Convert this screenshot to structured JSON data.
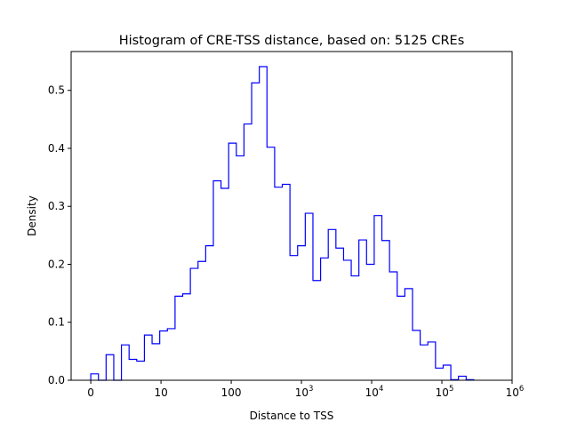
{
  "chart_data": {
    "type": "bar",
    "style": "step histogram",
    "title": "Histogram of CRE-TSS distance, based on: 5125 CREs",
    "xlabel": "Distance to TSS",
    "ylabel": "Density",
    "x_scale": "symlog (linear 0-10, log above)",
    "xlim_symlog": [
      -0.28,
      6
    ],
    "ylim": [
      0,
      0.567
    ],
    "bin_start_symlog": 0,
    "bin_width_symlog": 0.10909,
    "values": [
      0.011,
      0,
      0.044,
      0,
      0.061,
      0.036,
      0.033,
      0.078,
      0.063,
      0.085,
      0.089,
      0.145,
      0.149,
      0.193,
      0.205,
      0.232,
      0.344,
      0.331,
      0.409,
      0.387,
      0.442,
      0.513,
      0.541,
      0.402,
      0.333,
      0.338,
      0.215,
      0.232,
      0.288,
      0.172,
      0.211,
      0.26,
      0.228,
      0.207,
      0.18,
      0.242,
      0.2,
      0.284,
      0.241,
      0.187,
      0.145,
      0.158,
      0.086,
      0.061,
      0.066,
      0.021,
      0.026,
      0.001,
      0.007,
      0.001
    ],
    "color": "#0000ff",
    "x_ticks": [
      {
        "value": 0,
        "label": "0"
      },
      {
        "value": 1,
        "label": "10"
      },
      {
        "value": 2,
        "label": "100"
      },
      {
        "value": 3,
        "label": "10",
        "exp": "3"
      },
      {
        "value": 4,
        "label": "10",
        "exp": "4"
      },
      {
        "value": 5,
        "label": "10",
        "exp": "5"
      },
      {
        "value": 6,
        "label": "10",
        "exp": "6"
      }
    ],
    "y_ticks": [
      {
        "value": 0,
        "label": "0.0"
      },
      {
        "value": 0.1,
        "label": "0.1"
      },
      {
        "value": 0.2,
        "label": "0.2"
      },
      {
        "value": 0.3,
        "label": "0.3"
      },
      {
        "value": 0.4,
        "label": "0.4"
      },
      {
        "value": 0.5,
        "label": "0.5"
      }
    ],
    "grid": false,
    "legend": "none"
  }
}
